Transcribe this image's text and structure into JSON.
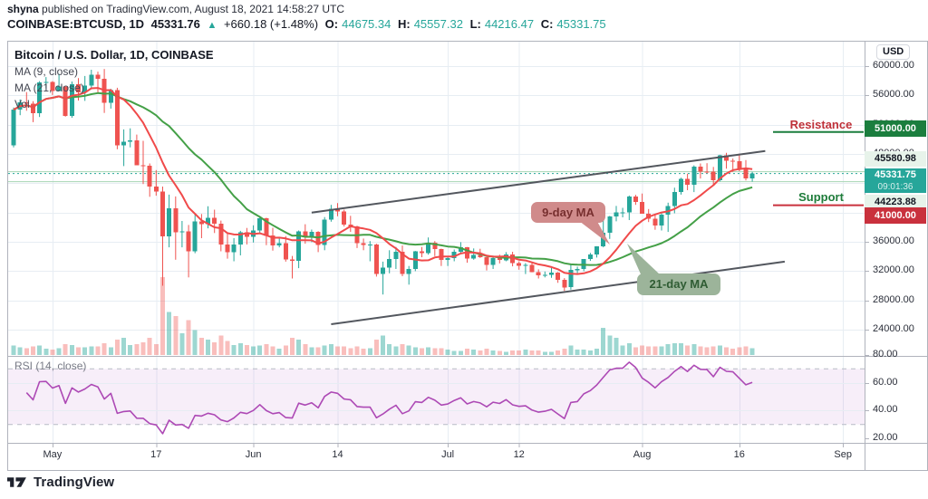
{
  "header": {
    "byline_bold": "shyna",
    "byline_rest": " published on TradingView.com, August 18, 2021 14:58:27 UTC",
    "symbol": "COINBASE:BTCUSD, 1D",
    "last": "45331.76",
    "arrow": "▲",
    "change": "+660.18 (+1.48%)",
    "ohlc": [
      {
        "label": "O:",
        "value": "44675.34"
      },
      {
        "label": "H:",
        "value": "45557.32"
      },
      {
        "label": "L:",
        "value": "44216.47"
      },
      {
        "label": "C:",
        "value": "45331.75"
      }
    ]
  },
  "legend": {
    "title": "Bitcoin / U.S. Dollar, 1D, COINBASE",
    "ma9": "MA (9, close)",
    "ma21": "MA (21, close)",
    "vol": "Vol",
    "rsi": "RSI (14, close)"
  },
  "axis": {
    "currency_label": "USD"
  },
  "annotations": {
    "resistance": "Resistance",
    "support": "Support",
    "resistance_price_label": "51000.00",
    "support_price_label": "41000.00",
    "level_high_label": "45580.98",
    "level_low_label": "44223.88",
    "last_price_label": "45331.75",
    "countdown": "09:01:36",
    "ma9_callout": "9-day MA",
    "ma21_callout": "21-day MA"
  },
  "footer": {
    "brand": "TradingView"
  },
  "chart_data": {
    "type": "candlestick",
    "title": "Bitcoin / U.S. Dollar, 1D, COINBASE",
    "symbol": "COINBASE:BTCUSD",
    "interval": "1D",
    "legend_position": "top-left",
    "grid": true,
    "price_axis": {
      "min": 20420,
      "max": 63340,
      "ticks": [
        60000,
        56000,
        52000,
        48000,
        44000,
        40000,
        36000,
        32000,
        28000,
        24000
      ]
    },
    "rsi_axis": {
      "min": 20,
      "max": 80,
      "ticks": [
        80,
        60,
        40,
        20
      ],
      "dashed_bands": [
        70,
        30
      ],
      "grid": [
        60,
        40
      ]
    },
    "indicators": {
      "ma_fast_period": 9,
      "ma_slow_period": 21,
      "rsi_period": 14
    },
    "time_ticks": [
      {
        "label": "May",
        "index": 6
      },
      {
        "label": "17",
        "index": 22
      },
      {
        "label": "Jun",
        "index": 37
      },
      {
        "label": "14",
        "index": 50
      },
      {
        "label": "Jul",
        "index": 67
      },
      {
        "label": "12",
        "index": 78
      },
      {
        "label": "Aug",
        "index": 97
      },
      {
        "label": "16",
        "index": 112
      },
      {
        "label": "Sep",
        "index": 128
      }
    ],
    "drawings": {
      "channel_upper": {
        "from_index": 46,
        "from_price": 40000,
        "to_index": 116,
        "to_price": 48400
      },
      "channel_lower": {
        "from_index": 49,
        "from_price": 24750,
        "to_index": 119,
        "to_price": 33300
      },
      "resistance_price": 51000,
      "support_price": 41000,
      "level_high": 45580.98,
      "level_low": 44223.88,
      "last_price": 45331.75
    },
    "colors": {
      "up": "#26a69a",
      "down": "#ef5350",
      "vol_up": "rgba(38,166,154,0.45)",
      "vol_down": "rgba(239,83,80,0.38)",
      "ma_fast": "#f04a4a",
      "ma_slow": "#44a047",
      "rsi": "#ad49b5",
      "rsi_band": "rgba(171,71,188,0.09)",
      "rsi_dash": "#b7bbc6",
      "grid": "#e7edf3",
      "separator": "#b0b3bc",
      "trendline": "#53575e",
      "resistance_line": "#1b7e3e",
      "support_line": "#c9313d",
      "level_line": "#a6d4b2",
      "last_price_line": "#26a69a"
    },
    "candles": [
      [
        "2021-04-26",
        49150,
        54350,
        48900,
        54050,
        12
      ],
      [
        "2021-04-27",
        54050,
        55450,
        53300,
        55050,
        10
      ],
      [
        "2021-04-28",
        55050,
        56450,
        53900,
        54880,
        9
      ],
      [
        "2021-04-29",
        54880,
        55200,
        52350,
        53550,
        11
      ],
      [
        "2021-04-30",
        53550,
        57950,
        53050,
        57750,
        12
      ],
      [
        "2021-05-01",
        57750,
        58500,
        57000,
        57830,
        8
      ],
      [
        "2021-05-02",
        57830,
        57950,
        56050,
        56600,
        7
      ],
      [
        "2021-05-03",
        56600,
        58950,
        56550,
        57200,
        9
      ],
      [
        "2021-05-04",
        57200,
        57220,
        53100,
        53200,
        14
      ],
      [
        "2021-05-05",
        53200,
        57900,
        52950,
        57500,
        13
      ],
      [
        "2021-05-06",
        57500,
        58350,
        55300,
        56400,
        10
      ],
      [
        "2021-05-07",
        56400,
        58650,
        55250,
        57350,
        10
      ],
      [
        "2021-05-08",
        57350,
        59500,
        56950,
        58850,
        11
      ],
      [
        "2021-05-09",
        58850,
        59250,
        56250,
        58250,
        11
      ],
      [
        "2021-05-10",
        58250,
        59600,
        53600,
        55000,
        15
      ],
      [
        "2021-05-11",
        55000,
        56900,
        54200,
        56700,
        10
      ],
      [
        "2021-05-12",
        56700,
        57050,
        48650,
        49150,
        20
      ],
      [
        "2021-05-13",
        49150,
        51350,
        46350,
        49700,
        22
      ],
      [
        "2021-05-14",
        49700,
        51500,
        48900,
        49850,
        13
      ],
      [
        "2021-05-15",
        49850,
        50650,
        46500,
        46450,
        14
      ],
      [
        "2021-05-16",
        46450,
        49800,
        43900,
        46400,
        16
      ],
      [
        "2021-05-17",
        46400,
        46700,
        42150,
        43580,
        22
      ],
      [
        "2021-05-18",
        43580,
        45800,
        42300,
        42850,
        14
      ],
      [
        "2021-05-19",
        42850,
        43550,
        30000,
        36750,
        100
      ],
      [
        "2021-05-20",
        36750,
        42450,
        35250,
        40600,
        55
      ],
      [
        "2021-05-21",
        40600,
        42200,
        33550,
        37300,
        50
      ],
      [
        "2021-05-22",
        37300,
        38850,
        35250,
        37450,
        28
      ],
      [
        "2021-05-23",
        37450,
        38300,
        31150,
        34700,
        45
      ],
      [
        "2021-05-24",
        34700,
        39900,
        34450,
        38800,
        32
      ],
      [
        "2021-05-25",
        38800,
        39800,
        36500,
        38400,
        22
      ],
      [
        "2021-05-26",
        38400,
        40850,
        37850,
        39300,
        20
      ],
      [
        "2021-05-27",
        39300,
        40400,
        37200,
        38500,
        16
      ],
      [
        "2021-05-28",
        38500,
        38900,
        34700,
        35650,
        25
      ],
      [
        "2021-05-29",
        35650,
        37300,
        33700,
        34600,
        18
      ],
      [
        "2021-05-30",
        34600,
        36500,
        33350,
        35650,
        13
      ],
      [
        "2021-05-31",
        35650,
        37500,
        34150,
        37300,
        15
      ],
      [
        "2021-06-01",
        37300,
        37900,
        35650,
        36680,
        13
      ],
      [
        "2021-06-02",
        36680,
        38250,
        35900,
        37570,
        11
      ],
      [
        "2021-06-03",
        37570,
        39500,
        37170,
        39250,
        12
      ],
      [
        "2021-06-04",
        39250,
        39290,
        35550,
        36840,
        14
      ],
      [
        "2021-06-05",
        36840,
        37920,
        34800,
        35500,
        11
      ],
      [
        "2021-06-06",
        35500,
        36480,
        35250,
        35790,
        8
      ],
      [
        "2021-06-07",
        35790,
        36790,
        33300,
        33580,
        12
      ],
      [
        "2021-06-08",
        33580,
        34070,
        31000,
        33400,
        22
      ],
      [
        "2021-06-09",
        33400,
        37550,
        32400,
        37400,
        20
      ],
      [
        "2021-06-10",
        37400,
        38400,
        35750,
        36680,
        14
      ],
      [
        "2021-06-11",
        36680,
        37680,
        35950,
        37340,
        10
      ],
      [
        "2021-06-12",
        37340,
        37450,
        34600,
        35550,
        10
      ],
      [
        "2021-06-13",
        35550,
        39380,
        34850,
        39020,
        12
      ],
      [
        "2021-06-14",
        39020,
        41050,
        38750,
        40520,
        14
      ],
      [
        "2021-06-15",
        40520,
        41300,
        39500,
        40150,
        11
      ],
      [
        "2021-06-16",
        40150,
        40400,
        38100,
        38350,
        11
      ],
      [
        "2021-06-17",
        38350,
        39550,
        37370,
        38100,
        9
      ],
      [
        "2021-06-18",
        38100,
        38200,
        35150,
        35820,
        11
      ],
      [
        "2021-06-19",
        35820,
        36450,
        34850,
        35600,
        8
      ],
      [
        "2021-06-20",
        35600,
        36100,
        33350,
        35615,
        9
      ],
      [
        "2021-06-21",
        35615,
        35750,
        31250,
        31600,
        20
      ],
      [
        "2021-06-22",
        31600,
        33300,
        28800,
        32500,
        25
      ],
      [
        "2021-06-23",
        32500,
        34850,
        31700,
        33680,
        14
      ],
      [
        "2021-06-24",
        33680,
        35300,
        32300,
        34660,
        11
      ],
      [
        "2021-06-25",
        34660,
        35500,
        31300,
        31590,
        14
      ],
      [
        "2021-06-26",
        31590,
        32700,
        30150,
        32280,
        12
      ],
      [
        "2021-06-27",
        32280,
        34750,
        32000,
        34700,
        10
      ],
      [
        "2021-06-28",
        34700,
        35300,
        33900,
        34470,
        9
      ],
      [
        "2021-06-29",
        34470,
        36600,
        34250,
        35900,
        10
      ],
      [
        "2021-06-30",
        35900,
        36100,
        34050,
        35040,
        9
      ],
      [
        "2021-07-01",
        35040,
        35060,
        32700,
        33550,
        9
      ],
      [
        "2021-07-02",
        33550,
        33950,
        32700,
        33800,
        7
      ],
      [
        "2021-07-03",
        33800,
        34950,
        33350,
        34670,
        5
      ],
      [
        "2021-07-04",
        34670,
        35950,
        34350,
        35290,
        5
      ],
      [
        "2021-07-05",
        35290,
        35290,
        33150,
        33700,
        8
      ],
      [
        "2021-07-06",
        33700,
        35100,
        33550,
        34230,
        7
      ],
      [
        "2021-07-07",
        34230,
        35050,
        33800,
        33880,
        6
      ],
      [
        "2021-07-08",
        33880,
        33930,
        32100,
        32875,
        8
      ],
      [
        "2021-07-09",
        32875,
        34100,
        32300,
        33800,
        6
      ],
      [
        "2021-07-10",
        33800,
        34250,
        33050,
        33500,
        5
      ],
      [
        "2021-07-11",
        33500,
        34600,
        33350,
        34250,
        4
      ],
      [
        "2021-07-12",
        34250,
        34650,
        32650,
        33080,
        6
      ],
      [
        "2021-07-13",
        33080,
        33330,
        32200,
        32730,
        6
      ],
      [
        "2021-07-14",
        32730,
        33100,
        31600,
        32820,
        7
      ],
      [
        "2021-07-15",
        32820,
        33180,
        31850,
        31870,
        6
      ],
      [
        "2021-07-16",
        31870,
        32250,
        31000,
        31400,
        6
      ],
      [
        "2021-07-17",
        31400,
        31950,
        31150,
        31520,
        4
      ],
      [
        "2021-07-18",
        31520,
        32430,
        31100,
        31780,
        4
      ],
      [
        "2021-07-19",
        31780,
        31890,
        30400,
        30840,
        6
      ],
      [
        "2021-07-20",
        30840,
        31050,
        29300,
        29790,
        8
      ],
      [
        "2021-07-21",
        29790,
        32850,
        29480,
        32140,
        12
      ],
      [
        "2021-07-22",
        32140,
        32600,
        31700,
        32300,
        7
      ],
      [
        "2021-07-23",
        32300,
        33650,
        32000,
        33630,
        7
      ],
      [
        "2021-07-24",
        33630,
        34500,
        33400,
        34260,
        6
      ],
      [
        "2021-07-25",
        34260,
        35400,
        33850,
        35400,
        8
      ],
      [
        "2021-07-26",
        35400,
        40550,
        35250,
        37240,
        35
      ],
      [
        "2021-07-27",
        37240,
        39540,
        36400,
        39450,
        25
      ],
      [
        "2021-07-28",
        39450,
        40900,
        38800,
        40020,
        22
      ],
      [
        "2021-07-29",
        40020,
        40640,
        39350,
        40030,
        12
      ],
      [
        "2021-07-30",
        40030,
        42320,
        38970,
        42200,
        15
      ],
      [
        "2021-07-31",
        42200,
        42420,
        41050,
        41460,
        10
      ],
      [
        "2021-08-01",
        41460,
        42600,
        39850,
        39870,
        12
      ],
      [
        "2021-08-02",
        39870,
        40480,
        38700,
        39150,
        11
      ],
      [
        "2021-08-03",
        39150,
        39780,
        37650,
        38210,
        11
      ],
      [
        "2021-08-04",
        38210,
        39970,
        37550,
        39720,
        11
      ],
      [
        "2021-08-05",
        39720,
        41350,
        37350,
        40870,
        14
      ],
      [
        "2021-08-06",
        40870,
        43400,
        39900,
        42800,
        15
      ],
      [
        "2021-08-07",
        42800,
        44750,
        42450,
        44600,
        15
      ],
      [
        "2021-08-08",
        44600,
        45300,
        43050,
        43800,
        12
      ],
      [
        "2021-08-09",
        43800,
        46450,
        42800,
        46280,
        14
      ],
      [
        "2021-08-10",
        46280,
        46700,
        44650,
        45600,
        11
      ],
      [
        "2021-08-11",
        45600,
        46740,
        45350,
        45560,
        10
      ],
      [
        "2021-08-12",
        45560,
        46230,
        43770,
        44400,
        11
      ],
      [
        "2021-08-13",
        44400,
        47890,
        44250,
        47800,
        12
      ],
      [
        "2021-08-14",
        47800,
        48150,
        46000,
        47100,
        10
      ],
      [
        "2021-08-15",
        47100,
        47380,
        45550,
        47000,
        8
      ],
      [
        "2021-08-16",
        47000,
        48050,
        45650,
        45900,
        10
      ],
      [
        "2021-08-17",
        45900,
        47160,
        44380,
        44680,
        11
      ],
      [
        "2021-08-18",
        44675,
        45557,
        44216,
        45332,
        9
      ]
    ]
  }
}
